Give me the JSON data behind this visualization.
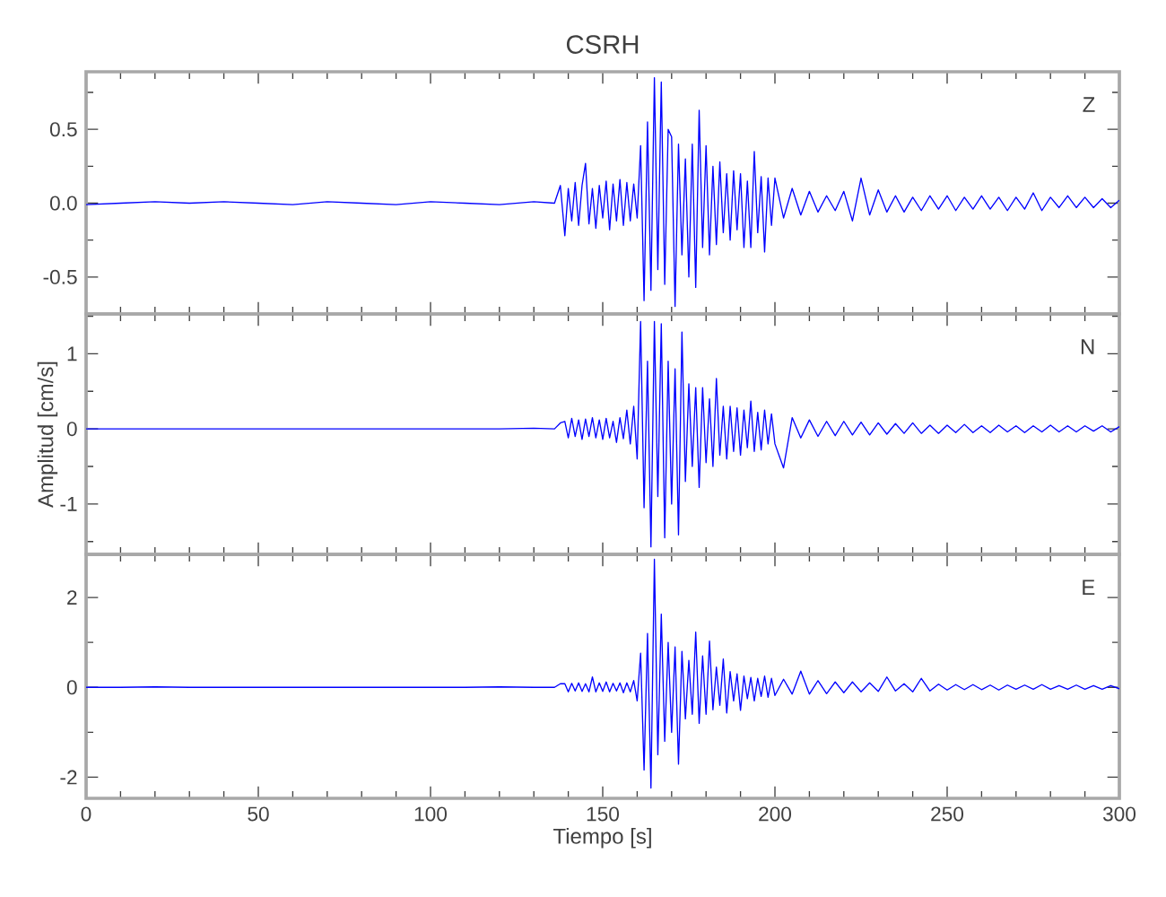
{
  "chart_data": [
    {
      "type": "line",
      "title": "CSRH",
      "annotations": [
        "Z"
      ],
      "tick_labels": "y",
      "x": [
        0,
        10,
        20,
        30,
        40,
        50,
        60,
        70,
        80,
        90,
        100,
        110,
        120,
        130,
        136,
        137.7,
        139,
        140,
        141,
        142,
        143,
        144,
        145,
        146,
        147,
        148,
        149,
        150,
        151,
        152,
        153,
        154,
        155,
        156,
        157,
        158,
        159,
        160,
        161,
        162,
        163,
        164,
        165,
        166,
        167,
        168,
        169,
        170,
        171,
        172,
        173,
        174,
        175,
        176,
        177,
        178,
        179,
        180,
        181,
        182,
        183,
        184,
        185,
        186,
        187,
        188,
        189,
        190,
        191,
        192,
        193,
        194,
        195,
        196,
        197,
        198,
        199,
        200,
        202.5,
        205,
        207.5,
        210,
        212.5,
        215,
        217.5,
        220,
        222.5,
        225,
        227.5,
        230,
        232.5,
        235,
        237.5,
        240,
        242.5,
        245,
        247.5,
        250,
        252.5,
        255,
        257.5,
        260,
        262.5,
        265,
        267.5,
        270,
        272.5,
        275,
        277.5,
        280,
        282.5,
        285,
        287.5,
        290,
        292.5,
        295,
        297.5,
        300
      ],
      "series": [
        {
          "color": "#0000ff",
          "values": [
            -0.01,
            0,
            0.01,
            0,
            0.01,
            0,
            -0.01,
            0.01,
            0,
            -0.01,
            0.01,
            0,
            -0.01,
            0.01,
            0,
            0.12,
            -0.22,
            0.1,
            -0.12,
            0.14,
            -0.15,
            0.12,
            0.27,
            -0.14,
            0.1,
            -0.17,
            0.12,
            -0.1,
            0.15,
            -0.18,
            0.13,
            -0.12,
            0.16,
            -0.15,
            0.14,
            -0.12,
            0.13,
            -0.1,
            0.39,
            -0.66,
            0.55,
            -0.59,
            0.85,
            -0.45,
            0.82,
            -0.55,
            0.5,
            0.45,
            -0.7,
            0.4,
            -0.35,
            0.3,
            -0.5,
            0.4,
            -0.57,
            0.63,
            -0.3,
            0.39,
            -0.35,
            0.25,
            -0.28,
            0.28,
            -0.2,
            0.2,
            -0.25,
            0.22,
            -0.18,
            0.2,
            -0.3,
            0.15,
            -0.3,
            0.35,
            -0.2,
            0.18,
            -0.33,
            0.17,
            -0.15,
            0.17,
            -0.1,
            0.1,
            -0.08,
            0.08,
            -0.06,
            0.05,
            -0.05,
            0.08,
            -0.12,
            0.17,
            -0.08,
            0.09,
            -0.06,
            0.05,
            -0.06,
            0.04,
            -0.05,
            0.05,
            -0.04,
            0.05,
            -0.05,
            0.04,
            -0.04,
            0.05,
            -0.04,
            0.04,
            -0.05,
            0.04,
            -0.04,
            0.07,
            -0.05,
            0.04,
            -0.03,
            0.05,
            -0.03,
            0.04,
            -0.03,
            0.03,
            -0.03,
            0.02
          ]
        }
      ],
      "xlim": [
        0,
        300
      ],
      "ylim": [
        -0.75,
        0.89
      ],
      "xticks": [
        0,
        {
          "value": 10,
          "label": null
        },
        {
          "value": 20,
          "label": null
        },
        {
          "value": 30,
          "label": null
        },
        {
          "value": 40,
          "label": null
        },
        50,
        {
          "value": 60,
          "label": null
        },
        {
          "value": 70,
          "label": null
        },
        {
          "value": 80,
          "label": null
        },
        {
          "value": 90,
          "label": null
        },
        100,
        {
          "value": 110,
          "label": null
        },
        {
          "value": 120,
          "label": null
        },
        {
          "value": 130,
          "label": null
        },
        {
          "value": 140,
          "label": null
        },
        150,
        {
          "value": 160,
          "label": null
        },
        {
          "value": 170,
          "label": null
        },
        {
          "value": 180,
          "label": null
        },
        {
          "value": 190,
          "label": null
        },
        200,
        {
          "value": 210,
          "label": null
        },
        {
          "value": 220,
          "label": null
        },
        {
          "value": 230,
          "label": null
        },
        {
          "value": 240,
          "label": null
        },
        250,
        {
          "value": 260,
          "label": null
        },
        {
          "value": 270,
          "label": null
        },
        {
          "value": 280,
          "label": null
        },
        {
          "value": 290,
          "label": null
        },
        300
      ],
      "yticks": [
        -0.5,
        {
          "value": -0.25,
          "label": null
        },
        {
          "value": 0,
          "label": "0.0"
        },
        {
          "value": 0.25,
          "label": null
        },
        0.5,
        {
          "value": 0.75,
          "label": null
        }
      ]
    },
    {
      "type": "line",
      "ylabel": "Amplitud [cm/s]",
      "annotations": [
        "N"
      ],
      "tick_labels": "y",
      "x": [
        0,
        10,
        20,
        30,
        40,
        50,
        60,
        70,
        80,
        90,
        100,
        110,
        120,
        130,
        136,
        137.7,
        139,
        140,
        141,
        142,
        143,
        144,
        145,
        146,
        147,
        148,
        149,
        150,
        151,
        152,
        153,
        154,
        155,
        156,
        157,
        158,
        159,
        160,
        161,
        162,
        163,
        164,
        165,
        166,
        167,
        168,
        169,
        170,
        171,
        172,
        173,
        174,
        175,
        176,
        177,
        178,
        179,
        180,
        181,
        182,
        183,
        184,
        185,
        186,
        187,
        188,
        189,
        190,
        191,
        192,
        193,
        194,
        195,
        196,
        197,
        198,
        199,
        200,
        202.5,
        205,
        207.5,
        210,
        212.5,
        215,
        217.5,
        220,
        222.5,
        225,
        227.5,
        230,
        232.5,
        235,
        237.5,
        240,
        242.5,
        245,
        247.5,
        250,
        252.5,
        255,
        257.5,
        260,
        262.5,
        265,
        267.5,
        270,
        272.5,
        275,
        277.5,
        280,
        282.5,
        285,
        287.5,
        290,
        292.5,
        295,
        297.5,
        300
      ],
      "series": [
        {
          "color": "#0000ff",
          "values": [
            0,
            0,
            0,
            0,
            0,
            0,
            0,
            0,
            0,
            0,
            0,
            0,
            0,
            0.01,
            0,
            0.08,
            0.1,
            -0.12,
            0.14,
            -0.1,
            0.12,
            -0.14,
            0.13,
            -0.1,
            0.15,
            -0.12,
            0.12,
            -0.14,
            0.14,
            -0.12,
            0.1,
            -0.18,
            0.15,
            -0.13,
            0.25,
            -0.2,
            0.3,
            -0.4,
            1.43,
            -1.05,
            0.9,
            -1.57,
            1.43,
            -0.9,
            1.4,
            -1.45,
            0.9,
            -1.0,
            0.8,
            -1.41,
            1.29,
            -0.7,
            0.6,
            -0.5,
            0.55,
            -0.78,
            0.55,
            -0.45,
            0.4,
            -0.5,
            0.67,
            -0.35,
            0.3,
            -0.4,
            0.3,
            -0.3,
            0.28,
            -0.35,
            0.25,
            -0.25,
            0.37,
            -0.3,
            0.22,
            -0.28,
            0.25,
            -0.2,
            0.2,
            -0.2,
            -0.52,
            0.15,
            -0.12,
            0.12,
            -0.1,
            0.1,
            -0.09,
            0.1,
            -0.08,
            0.09,
            -0.08,
            0.08,
            -0.07,
            0.07,
            -0.06,
            0.08,
            -0.06,
            0.05,
            -0.06,
            0.05,
            -0.05,
            0.06,
            -0.05,
            0.04,
            -0.05,
            0.05,
            -0.04,
            0.04,
            -0.05,
            0.04,
            -0.04,
            0.05,
            -0.04,
            0.04,
            -0.04,
            0.04,
            -0.03,
            0.04,
            -0.04,
            0.03
          ]
        }
      ],
      "xlim": [
        0,
        300
      ],
      "ylim": [
        -1.67,
        1.53
      ],
      "xticks": [
        0,
        {
          "value": 10,
          "label": null
        },
        {
          "value": 20,
          "label": null
        },
        {
          "value": 30,
          "label": null
        },
        {
          "value": 40,
          "label": null
        },
        50,
        {
          "value": 60,
          "label": null
        },
        {
          "value": 70,
          "label": null
        },
        {
          "value": 80,
          "label": null
        },
        {
          "value": 90,
          "label": null
        },
        100,
        {
          "value": 110,
          "label": null
        },
        {
          "value": 120,
          "label": null
        },
        {
          "value": 130,
          "label": null
        },
        {
          "value": 140,
          "label": null
        },
        150,
        {
          "value": 160,
          "label": null
        },
        {
          "value": 170,
          "label": null
        },
        {
          "value": 180,
          "label": null
        },
        {
          "value": 190,
          "label": null
        },
        200,
        {
          "value": 210,
          "label": null
        },
        {
          "value": 220,
          "label": null
        },
        {
          "value": 230,
          "label": null
        },
        {
          "value": 240,
          "label": null
        },
        250,
        {
          "value": 260,
          "label": null
        },
        {
          "value": 270,
          "label": null
        },
        {
          "value": 280,
          "label": null
        },
        {
          "value": 290,
          "label": null
        },
        300
      ],
      "yticks": [
        {
          "value": -1.5,
          "label": null
        },
        -1,
        {
          "value": -0.5,
          "label": null
        },
        0,
        {
          "value": 0.5,
          "label": null
        },
        1,
        {
          "value": 1.5,
          "label": null
        }
      ]
    },
    {
      "type": "line",
      "xlabel": "Tiempo [s]",
      "annotations": [
        "E"
      ],
      "x": [
        0,
        10,
        20,
        30,
        40,
        50,
        60,
        70,
        80,
        90,
        100,
        110,
        120,
        130,
        136,
        137.7,
        139,
        140,
        141,
        142,
        143,
        144,
        145,
        146,
        147,
        148,
        149,
        150,
        151,
        152,
        153,
        154,
        155,
        156,
        157,
        158,
        159,
        160,
        161,
        162,
        163,
        164,
        165,
        166,
        167,
        168,
        169,
        170,
        171,
        172,
        173,
        174,
        175,
        176,
        177,
        178,
        179,
        180,
        181,
        182,
        183,
        184,
        185,
        186,
        187,
        188,
        189,
        190,
        191,
        192,
        193,
        194,
        195,
        196,
        197,
        198,
        199,
        200,
        202.5,
        205,
        207.5,
        210,
        212.5,
        215,
        217.5,
        220,
        222.5,
        225,
        227.5,
        230,
        232.5,
        235,
        237.5,
        240,
        242.5,
        245,
        247.5,
        250,
        252.5,
        255,
        257.5,
        260,
        262.5,
        265,
        267.5,
        270,
        272.5,
        275,
        277.5,
        280,
        282.5,
        285,
        287.5,
        290,
        292.5,
        295,
        297.5,
        300
      ],
      "series": [
        {
          "color": "#0000ff",
          "values": [
            0,
            0,
            0.01,
            0,
            0,
            0,
            0,
            0,
            0,
            0,
            0,
            0,
            0.01,
            0,
            0,
            0.08,
            0.08,
            -0.1,
            0.09,
            -0.08,
            0.1,
            -0.09,
            0.08,
            -0.1,
            0.23,
            -0.1,
            0.1,
            -0.09,
            0.12,
            -0.1,
            0.09,
            -0.08,
            0.1,
            -0.12,
            0.1,
            -0.1,
            0.15,
            -0.3,
            0.76,
            -1.84,
            1.2,
            -2.24,
            2.85,
            -1.5,
            1.63,
            -1.2,
            1.0,
            -1.0,
            0.9,
            -1.71,
            0.8,
            -0.7,
            0.6,
            -0.6,
            1.23,
            -0.8,
            0.7,
            -0.6,
            1.03,
            -0.5,
            0.45,
            -0.4,
            0.63,
            -0.57,
            0.35,
            -0.3,
            0.3,
            -0.51,
            0.25,
            -0.25,
            0.22,
            -0.3,
            0.2,
            -0.2,
            0.25,
            -0.22,
            0.2,
            -0.18,
            0.18,
            -0.15,
            0.36,
            -0.15,
            0.15,
            -0.14,
            0.12,
            -0.12,
            0.12,
            -0.1,
            0.1,
            -0.09,
            0.23,
            -0.08,
            0.08,
            -0.1,
            0.2,
            -0.08,
            0.07,
            -0.06,
            0.06,
            -0.05,
            0.06,
            -0.05,
            0.05,
            -0.06,
            0.05,
            -0.04,
            0.05,
            -0.04,
            0.06,
            -0.04,
            0.04,
            -0.04,
            0.05,
            -0.04,
            0.04,
            -0.04,
            0.04,
            -0.03
          ]
        }
      ],
      "xlim": [
        0,
        300
      ],
      "ylim": [
        -2.47,
        2.96
      ],
      "xticks": [
        0,
        {
          "value": 10,
          "label": null
        },
        {
          "value": 20,
          "label": null
        },
        {
          "value": 30,
          "label": null
        },
        {
          "value": 40,
          "label": null
        },
        50,
        {
          "value": 60,
          "label": null
        },
        {
          "value": 70,
          "label": null
        },
        {
          "value": 80,
          "label": null
        },
        {
          "value": 90,
          "label": null
        },
        100,
        {
          "value": 110,
          "label": null
        },
        {
          "value": 120,
          "label": null
        },
        {
          "value": 130,
          "label": null
        },
        {
          "value": 140,
          "label": null
        },
        150,
        {
          "value": 160,
          "label": null
        },
        {
          "value": 170,
          "label": null
        },
        {
          "value": 180,
          "label": null
        },
        {
          "value": 190,
          "label": null
        },
        200,
        {
          "value": 210,
          "label": null
        },
        {
          "value": 220,
          "label": null
        },
        {
          "value": 230,
          "label": null
        },
        {
          "value": 240,
          "label": null
        },
        250,
        {
          "value": 260,
          "label": null
        },
        {
          "value": 270,
          "label": null
        },
        {
          "value": 280,
          "label": null
        },
        {
          "value": 290,
          "label": null
        },
        300
      ],
      "yticks": [
        -2,
        {
          "value": -1,
          "label": null
        },
        0,
        {
          "value": 1,
          "label": null
        },
        2
      ]
    }
  ]
}
